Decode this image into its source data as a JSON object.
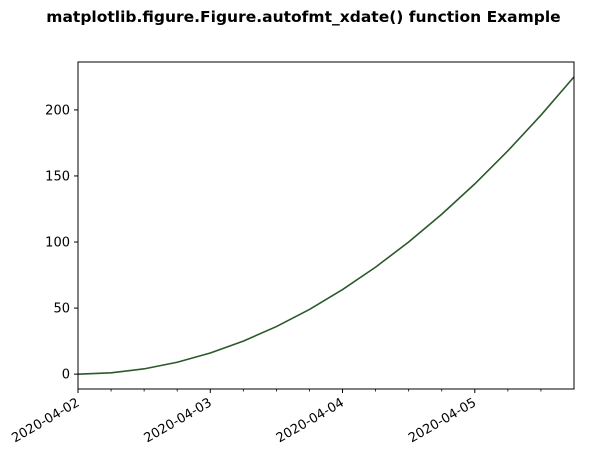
{
  "chart_data": {
    "type": "line",
    "title": "matplotlib.figure.Figure.autofmt_xdate() function Example",
    "xlabel": "",
    "ylabel": "",
    "x": [
      "2020-04-02 00:00",
      "2020-04-02 06:00",
      "2020-04-02 12:00",
      "2020-04-02 18:00",
      "2020-04-03 00:00",
      "2020-04-03 06:00",
      "2020-04-03 12:00",
      "2020-04-03 18:00",
      "2020-04-04 00:00",
      "2020-04-04 06:00",
      "2020-04-04 12:00",
      "2020-04-04 18:00",
      "2020-04-05 00:00",
      "2020-04-05 06:00",
      "2020-04-05 12:00",
      "2020-04-05 18:00"
    ],
    "series": [
      {
        "values": [
          0,
          1,
          4,
          9,
          16,
          25,
          36,
          49,
          64,
          81,
          100,
          121,
          144,
          169,
          196,
          225
        ],
        "color": "#2a5a2a"
      }
    ],
    "xlim": [
      "2020-04-02 00:00",
      "2020-04-05 18:00"
    ],
    "ylim": [
      -11.25,
      236.25
    ],
    "xticks": [
      "2020-04-02",
      "2020-04-03",
      "2020-04-04",
      "2020-04-05"
    ],
    "xminor_ticks": [
      "2020-04-02 06:00",
      "2020-04-02 12:00",
      "2020-04-02 18:00",
      "2020-04-03 06:00",
      "2020-04-03 12:00",
      "2020-04-03 18:00",
      "2020-04-04 06:00",
      "2020-04-04 12:00",
      "2020-04-04 18:00",
      "2020-04-05 06:00",
      "2020-04-05 12:00"
    ],
    "xtick_rotation": 30,
    "yticks": [
      0,
      50,
      100,
      150,
      200
    ],
    "grid": false,
    "legend": "none"
  }
}
